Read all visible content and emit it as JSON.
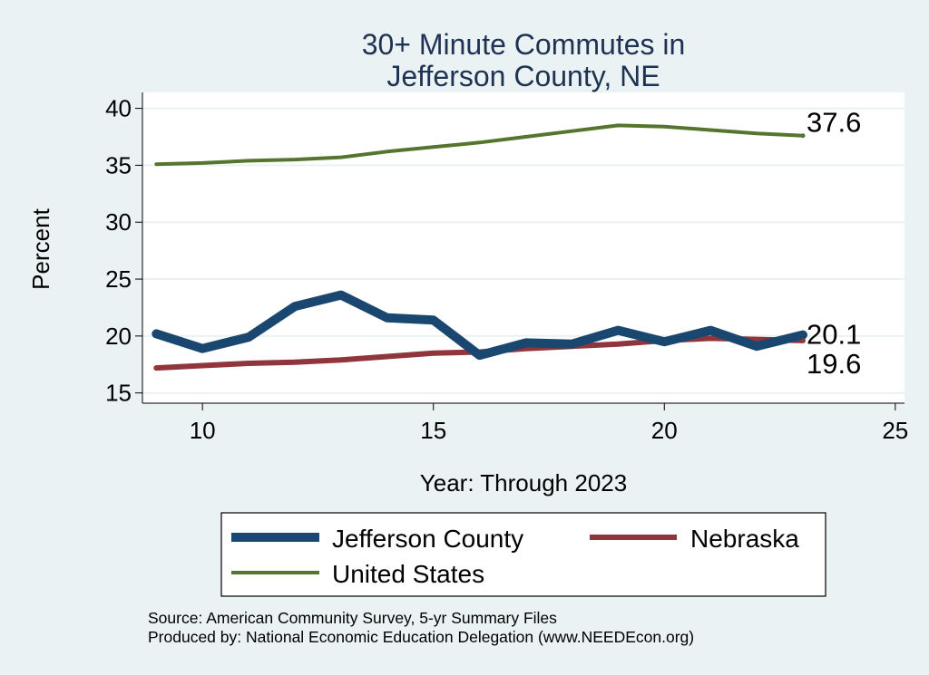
{
  "chart_data": {
    "type": "line",
    "title_lines": [
      "30+ Minute Commutes in",
      "Jefferson County, NE"
    ],
    "xlabel": "Year: Through 2023",
    "ylabel": "Percent",
    "xlim": [
      8.7,
      25.2
    ],
    "ylim": [
      14.1,
      41.4
    ],
    "xticks": [
      10,
      15,
      20,
      25
    ],
    "yticks": [
      15,
      20,
      25,
      30,
      35,
      40
    ],
    "grid": true,
    "legend_position": "bottom",
    "x": [
      9,
      10,
      11,
      12,
      13,
      14,
      15,
      16,
      17,
      18,
      19,
      20,
      21,
      22,
      23
    ],
    "series": [
      {
        "name": "Jefferson County",
        "color": "#1a476f",
        "values": [
          20.2,
          18.9,
          19.9,
          22.6,
          23.6,
          21.6,
          21.4,
          18.3,
          19.4,
          19.3,
          20.5,
          19.5,
          20.5,
          19.1,
          20.1
        ],
        "end_label": "20.1"
      },
      {
        "name": "Nebraska",
        "color": "#90353b",
        "values": [
          17.2,
          17.4,
          17.6,
          17.7,
          17.9,
          18.2,
          18.5,
          18.6,
          18.9,
          19.1,
          19.3,
          19.6,
          19.8,
          19.7,
          19.6
        ],
        "end_label": "19.6"
      },
      {
        "name": "United States",
        "color": "#55752f",
        "values": [
          35.1,
          35.2,
          35.4,
          35.5,
          35.7,
          36.2,
          36.6,
          37.0,
          37.5,
          38.0,
          38.5,
          38.4,
          38.1,
          37.8,
          37.6
        ],
        "end_label": "37.6"
      }
    ],
    "notes": [
      "Source: American Community Survey, 5-yr Summary Files",
      "Produced by: National Economic Education Delegation (www.NEEDEcon.org)"
    ]
  }
}
